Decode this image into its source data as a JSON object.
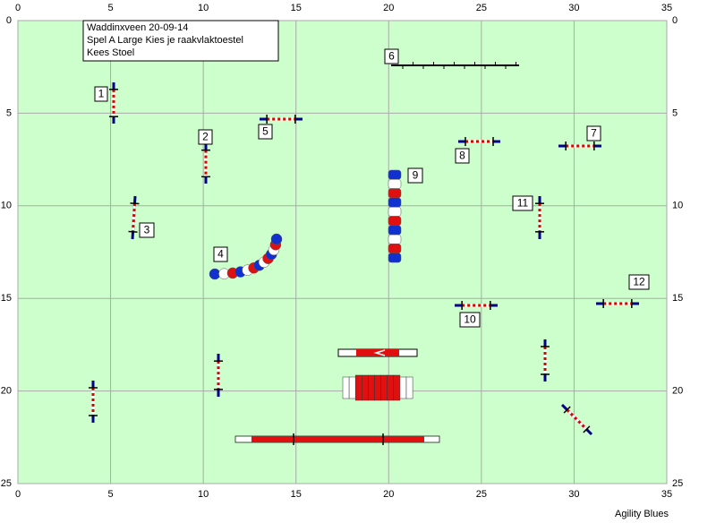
{
  "title_box": {
    "lines": [
      "Waddinxveen 20-09-14",
      "Spel A Large Kies je raakvlaktoestel",
      "Kees Stoel"
    ]
  },
  "x_axis": {
    "lim": [
      0,
      35
    ],
    "ticks": [
      0,
      5,
      10,
      15,
      20,
      25,
      30,
      35
    ]
  },
  "y_axis": {
    "lim": [
      0,
      25
    ],
    "ticks": [
      0,
      5,
      10,
      15,
      20,
      25
    ]
  },
  "course_numbers": [
    1,
    2,
    3,
    4,
    5,
    6,
    7,
    8,
    9,
    10,
    11,
    12
  ],
  "footer": "Agility Blues"
}
